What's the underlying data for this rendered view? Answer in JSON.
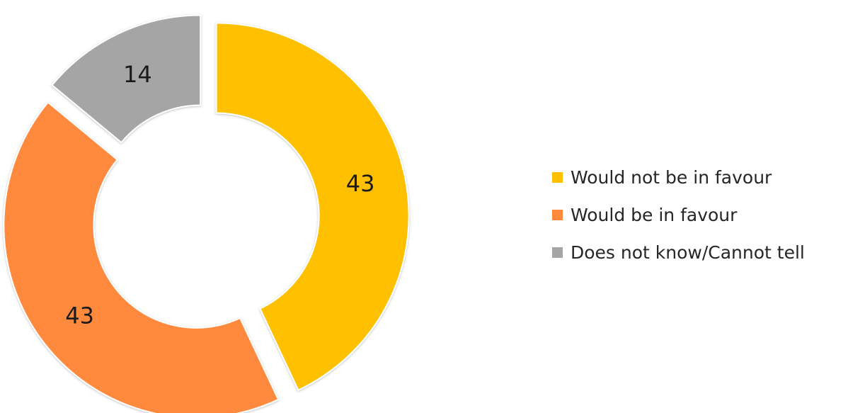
{
  "chart_data": {
    "type": "pie",
    "variant": "donut",
    "exploded": true,
    "categories": [
      "Would not be in favour",
      "Would be in favour",
      "Does not know/Cannot tell"
    ],
    "values": [
      43,
      43,
      14
    ],
    "data_labels": [
      "43",
      "43",
      "14"
    ],
    "colors": [
      "#FFC000",
      "#FF8A3C",
      "#A5A5A5"
    ],
    "legend_position": "right",
    "title": ""
  }
}
